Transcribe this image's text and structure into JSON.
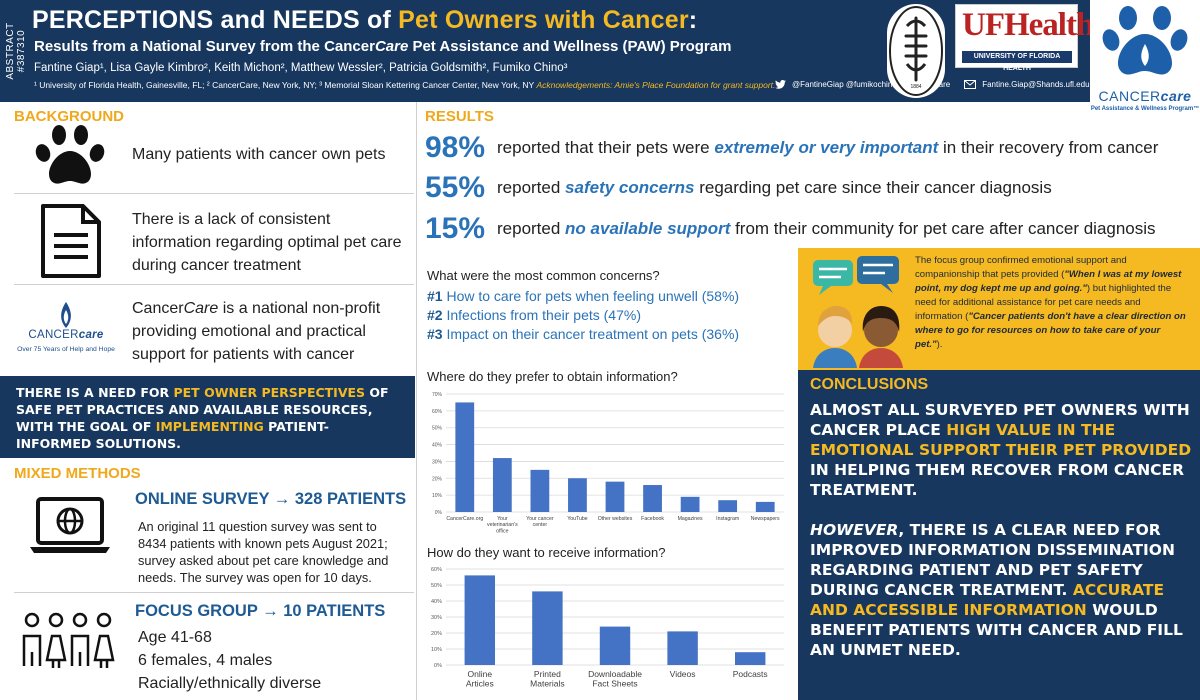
{
  "header": {
    "abstract": "ABSTRACT #387310",
    "title_a": "PERCEPTIONS and NEEDS of ",
    "title_b": "Pet Owners with Cancer",
    "title_c": ":",
    "subtitle_a": "Results from a National Survey from the Cancer",
    "subtitle_b": "Care",
    "subtitle_c": " Pet Assistance and Wellness (PAW) Program",
    "authors": "Fantine Giap¹, Lisa Gayle Kimbro², Keith Michon², Matthew Wessler², Patricia Goldsmith², Fumiko Chino³",
    "affiliations": "¹ University of Florida Health, Gainesville, FL; ² CancerCare, New York, NY; ³ Memorial Sloan Kettering Cancer Center, New York, NY",
    "acknowledgements": "Acknowledgements: Amie's Place Foundation for grant support.",
    "twitter": "@FantineGiap @fumikochino @CancerCare",
    "email": "Fantine.Giap@Shands.ufl.edu",
    "msk_year": "1884",
    "ufhealth": "UFHealth",
    "ufhealth_sub": "UNIVERSITY OF FLORIDA HEALTH",
    "cc_logo_a": "CANCER",
    "cc_logo_b": "care",
    "cc_logo_sub": "Pet Assistance & Wellness Program™"
  },
  "background": {
    "heading": "BACKGROUND",
    "item1": "Many patients with cancer own pets",
    "item2": "There is a lack of consistent information regarding optimal pet care during cancer treatment",
    "item3_a": "Cancer",
    "item3_b": "Care",
    "item3_c": " is a national non-profit providing emotional and practical support for patients with cancer",
    "cc_logo_a": "CANCER",
    "cc_logo_b": "care",
    "cc_logo_tag": "Over 75 Years of Help and Hope"
  },
  "need": {
    "a": "THERE IS A NEED FOR ",
    "b": "PET OWNER PERSPECTIVES",
    "c": " OF SAFE PET PRACTICES AND AVAILABLE RESOURCES, WITH THE GOAL OF ",
    "d": "IMPLEMENTING",
    "e": " PATIENT-INFORMED SOLUTIONS."
  },
  "methods": {
    "heading": "MIXED METHODS",
    "survey_head": "ONLINE SURVEY → 328 PATIENTS",
    "survey_text": "An original 11 question survey was sent to 8434 patients with known pets August 2021; survey asked about pet care knowledge and needs. The survey was open for 10 days.",
    "focus_head": "FOCUS GROUP → 10 PATIENTS",
    "focus_l1": "Age 41-68",
    "focus_l2": "6 females, 4 males",
    "focus_l3": "Racially/ethnically diverse"
  },
  "results": {
    "heading": "RESULTS",
    "stats": [
      {
        "pct": "98%",
        "pre": "reported that their pets were ",
        "em": "extremely or very important",
        "post": " in their recovery from cancer"
      },
      {
        "pct": "55%",
        "pre": "reported ",
        "em": "safety concerns",
        "post": " regarding pet care since their cancer diagnosis"
      },
      {
        "pct": "15%",
        "pre": "reported ",
        "em": "no available support",
        "post": " from their community for pet care after cancer diagnosis"
      }
    ],
    "concerns_q": "What were the most common concerns?",
    "concerns": [
      {
        "num": "#1",
        "text": " How to care for pets when feeling unwell (58%)"
      },
      {
        "num": "#2",
        "text": " Infections from their pets (47%)"
      },
      {
        "num": "#3",
        "text": " Impact on their cancer treatment on pets (36%)"
      }
    ],
    "obtain_q": "Where do they prefer to obtain information?",
    "receive_q": "How do they want to receive information?"
  },
  "focus_quote": {
    "a": "The focus group confirmed emotional support and companionship that pets provided (",
    "b": "\"When I was at my lowest point, my dog kept me up and going.\"",
    "c": ") but highlighted the need for additional assistance for pet care needs and information (",
    "d": "\"Cancer patients don't have a clear direction on where to go for resources on how to take care of your pet.\"",
    "e": ")."
  },
  "conclusions": {
    "heading": "CONCLUSIONS",
    "p1_a": "ALMOST ALL SURVEYED PET OWNERS WITH CANCER PLACE ",
    "p1_b": "HIGH VALUE IN THE EMOTIONAL SUPPORT THEIR PET PROVIDED",
    "p1_c": " IN HELPING THEM RECOVER FROM CANCER TREATMENT.",
    "p2_a": "HOWEVER",
    "p2_b": ", THERE IS A CLEAR NEED FOR IMPROVED INFORMATION DISSEMINATION REGARDING PATIENT AND PET SAFETY DURING CANCER TREATMENT. ",
    "p2_c": "ACCURATE AND ACCESSIBLE INFORMATION",
    "p2_d": " WOULD BENEFIT PATIENTS WITH CANCER AND FILL AN UNMET NEED."
  },
  "colors": {
    "navy": "#17375e",
    "gold": "#f5b921",
    "orange": "#f0a81c",
    "blue": "#2a73b8",
    "bar": "#4472c4"
  },
  "chart_data": [
    {
      "type": "bar",
      "title": "Where do they prefer to obtain information?",
      "categories": [
        "CancerCare.org",
        "Your veterinarian's office",
        "Your cancer center",
        "YouTube",
        "Other websites",
        "Facebook",
        "Magazines",
        "Instagram",
        "Newspapers"
      ],
      "values": [
        65,
        32,
        25,
        20,
        18,
        16,
        9,
        7,
        6
      ],
      "ylim": [
        0,
        70
      ],
      "yticks": [
        "0%",
        "10%",
        "20%",
        "30%",
        "40%",
        "50%",
        "60%",
        "70%"
      ],
      "grid": true
    },
    {
      "type": "bar",
      "title": "How do they want to receive information?",
      "categories": [
        "Online Articles",
        "Printed Materials",
        "Downloadable Fact Sheets",
        "Videos",
        "Podcasts"
      ],
      "values": [
        56,
        46,
        24,
        21,
        8
      ],
      "ylim": [
        0,
        60
      ],
      "yticks": [
        "0%",
        "10%",
        "20%",
        "30%",
        "40%",
        "50%",
        "60%"
      ],
      "grid": true
    }
  ]
}
